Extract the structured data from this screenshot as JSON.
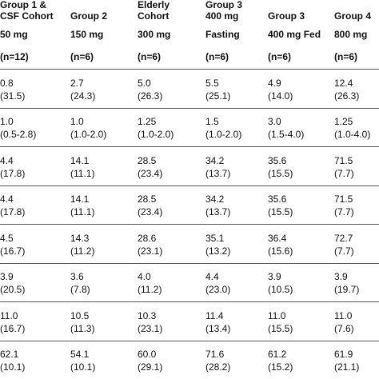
{
  "headers": [
    {
      "line1": "Group 1 &",
      "line2": "CSF Cohort",
      "line3": "50 mg",
      "n": "(n=12)"
    },
    {
      "line1": "",
      "line2": "Group 2",
      "line3": "150 mg",
      "n": "(n=6)"
    },
    {
      "line1": "Elderly",
      "line2": "Cohort",
      "line3": "300 mg",
      "n": "(n=6)"
    },
    {
      "line1": "Group 3",
      "line2": "400 mg",
      "line3": "Fasting",
      "n": "(n=6)"
    },
    {
      "line1": "",
      "line2": "Group 3",
      "line3": "400 mg Fed",
      "n": "(n=6)"
    },
    {
      "line1": "",
      "line2": "Group 4",
      "line3": "800 mg",
      "n": "(n=6)"
    }
  ],
  "rows": [
    [
      [
        "0.8",
        "(31.5)"
      ],
      [
        "2.7",
        "(24.3)"
      ],
      [
        "5.0",
        "(26.3)"
      ],
      [
        "5.5",
        "(25.1)"
      ],
      [
        "4.9",
        "(14.0)"
      ],
      [
        "12.4",
        "(26.3)"
      ]
    ],
    [
      [
        "1.0",
        "(0.5-2.8)"
      ],
      [
        "1.0",
        "(1.0-2.0)"
      ],
      [
        "1.25",
        "(1.0-2.0)"
      ],
      [
        "1.5",
        "(1.0-2.0)"
      ],
      [
        "3.0",
        "(1.5-4.0)"
      ],
      [
        "1.25",
        "(1.0-4.0)"
      ]
    ],
    [
      [
        "4.4",
        "(17.8)"
      ],
      [
        "14.1",
        "(11.1)"
      ],
      [
        "28.5",
        "(23.4)"
      ],
      [
        "34.2",
        "(13.7)"
      ],
      [
        "35.6",
        "(15.5)"
      ],
      [
        "71.5",
        "(7.7)"
      ]
    ],
    [
      [
        "4.4",
        "(17.8)"
      ],
      [
        "14.1",
        "(11.1)"
      ],
      [
        "28.5",
        "(23.4)"
      ],
      [
        "34.2",
        "(13.7)"
      ],
      [
        "35.6",
        "(15.5)"
      ],
      [
        "71.5",
        "(7.7)"
      ]
    ],
    [
      [
        "4.5",
        "(16.7)"
      ],
      [
        "14.3",
        "(11.2)"
      ],
      [
        "28.6",
        "(23.1)"
      ],
      [
        "35.1",
        "(13.2)"
      ],
      [
        "36.4",
        "(15.6)"
      ],
      [
        "72.7",
        "(7.7)"
      ]
    ],
    [
      [
        "3.9",
        "(20.5)"
      ],
      [
        "3.6",
        "(7.8)"
      ],
      [
        "4.0",
        "(11.2)"
      ],
      [
        "4.4",
        "(23.0)"
      ],
      [
        "3.9",
        "(10.5)"
      ],
      [
        "3.9",
        "(19.7)"
      ]
    ],
    [
      [
        "11.0",
        "(16.7)"
      ],
      [
        "10.5",
        "(11.3)"
      ],
      [
        "10.3",
        "(23.1)"
      ],
      [
        "11.4",
        "(13.4)"
      ],
      [
        "11.0",
        "(15.5)"
      ],
      [
        "11.0",
        "(7.6)"
      ]
    ],
    [
      [
        "62.1",
        "(10.1)"
      ],
      [
        "54.1",
        "(10.1)"
      ],
      [
        "60.0",
        "(29.1)"
      ],
      [
        "71.6",
        "(28.2)"
      ],
      [
        "61.2",
        "(15.2)"
      ],
      [
        "61.9",
        "(21.1)"
      ]
    ]
  ]
}
